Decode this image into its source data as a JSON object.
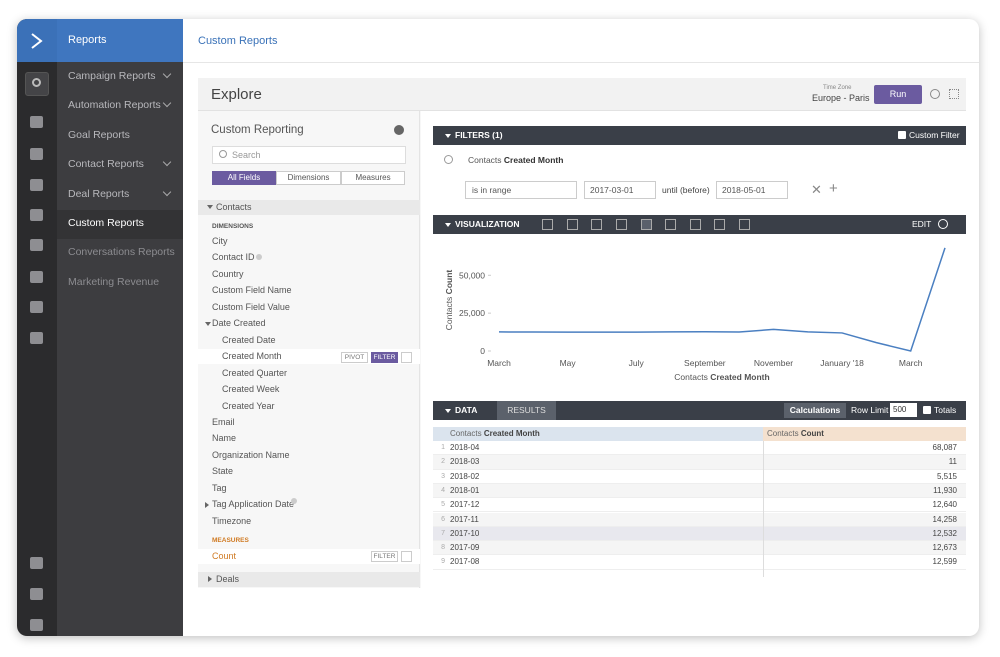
{
  "nav": {
    "brand": "Reports",
    "items": [
      "Campaign Reports",
      "Automation Reports",
      "Goal Reports",
      "Contact Reports",
      "Deal Reports",
      "Custom Reports",
      "Conversations Reports",
      "Marketing Revenue"
    ]
  },
  "header": {
    "title": "Custom Reports"
  },
  "explore": {
    "title": "Explore",
    "timezone_label": "Time Zone",
    "timezone": "Europe - Paris",
    "run": "Run"
  },
  "fields": {
    "title": "Custom Reporting",
    "search": "Search",
    "tabs": [
      "All Fields",
      "Dimensions",
      "Measures"
    ],
    "group": "Contacts",
    "dimensions_label": "DIMENSIONS",
    "dimensions": [
      "City",
      "Contact ID",
      "Country",
      "Custom Field Name",
      "Custom Field Value",
      "Date Created",
      "Email",
      "Name",
      "Organization Name",
      "State",
      "Tag",
      "Tag Application Date",
      "Timezone"
    ],
    "date_children": [
      "Created Date",
      "Created Month",
      "Created Quarter",
      "Created Week",
      "Created Year"
    ],
    "pivot": "PIVOT",
    "filter": "FILTER",
    "measures_label": "MEASURES",
    "measures": [
      "Count"
    ],
    "deals": "Deals"
  },
  "filters": {
    "title": "FILTERS (1)",
    "custom": "Custom Filter",
    "field_prefix": "Contacts",
    "field": "Created Month",
    "op": "is in range",
    "from": "2017-03-01",
    "until": "until (before)",
    "to": "2018-05-01"
  },
  "visualization": {
    "title": "VISUALIZATION",
    "edit": "EDIT"
  },
  "chart_data": {
    "type": "line",
    "categories": [
      "March",
      null,
      "May",
      null,
      "July",
      null,
      "September",
      null,
      "November",
      null,
      "January '18",
      null,
      "March",
      null
    ],
    "series": [
      {
        "name": "Contacts Count",
        "color": "#4a7fc1",
        "values": [
          12600,
          12550,
          12500,
          12450,
          12500,
          12599,
          12673,
          12532,
          14258,
          12640,
          11930,
          5515,
          11,
          68087
        ]
      }
    ],
    "ylim": [
      0,
      70000
    ],
    "yticks": [
      0,
      {
        "value": 25000,
        "label": "25,000"
      },
      {
        "value": 50000,
        "label": "50,000"
      }
    ],
    "xlabel": {
      "prefix": "Contacts",
      "field": "Created Month"
    },
    "ylabel": {
      "prefix": "Contacts",
      "field": "Count"
    }
  },
  "data": {
    "tab": "DATA",
    "results": "RESULTS",
    "calculations": "Calculations",
    "row_limit": "Row Limit",
    "row_limit_value": "500",
    "totals": "Totals",
    "columns": [
      {
        "prefix": "Contacts",
        "field": "Created Month"
      },
      {
        "prefix": "Contacts",
        "field": "Count"
      }
    ],
    "rows": [
      [
        "1",
        "2018-04",
        "68,087"
      ],
      [
        "2",
        "2018-03",
        "11"
      ],
      [
        "3",
        "2018-02",
        "5,515"
      ],
      [
        "4",
        "2018-01",
        "11,930"
      ],
      [
        "5",
        "2017-12",
        "12,640"
      ],
      [
        "6",
        "2017-11",
        "14,258"
      ],
      [
        "7",
        "2017-10",
        "12,532"
      ],
      [
        "8",
        "2017-09",
        "12,673"
      ],
      [
        "9",
        "2017-08",
        "12,599"
      ]
    ]
  }
}
